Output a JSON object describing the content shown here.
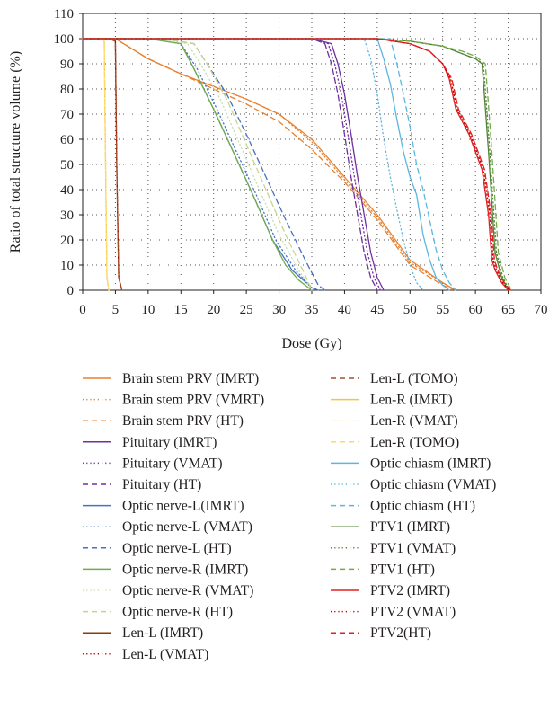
{
  "chart_data": {
    "type": "line",
    "title": "",
    "xlabel": "Dose (Gy)",
    "ylabel": "Ratio of total structure volume (%)",
    "xlim": [
      0,
      70
    ],
    "ylim": [
      0,
      110
    ],
    "x_ticks": [
      0,
      5,
      10,
      15,
      20,
      25,
      30,
      35,
      40,
      45,
      50,
      55,
      60,
      65,
      70
    ],
    "y_ticks": [
      0,
      10,
      20,
      30,
      40,
      50,
      60,
      70,
      80,
      90,
      100,
      110
    ],
    "grid": "dotted",
    "legend_position": "bottom",
    "series": [
      {
        "name": "Brain stem PRV (IMRT)",
        "color": "#e8812f",
        "dash": "solid",
        "x": [
          0,
          5,
          10,
          15,
          20,
          25,
          30,
          35,
          40,
          45,
          50,
          55,
          57
        ],
        "y": [
          100,
          100,
          92,
          86,
          81,
          76,
          70,
          60,
          45,
          30,
          12,
          3,
          0
        ]
      },
      {
        "name": "Brain stem PRV (VMRT)",
        "color": "#e8812f",
        "dash": "dot",
        "x": [
          0,
          5,
          10,
          15,
          20,
          25,
          30,
          35,
          40,
          45,
          50,
          55,
          57
        ],
        "y": [
          100,
          100,
          92,
          86,
          81,
          76,
          70,
          59,
          44,
          29,
          11,
          3,
          0
        ]
      },
      {
        "name": "Brain stem PRV (HT)",
        "color": "#e8812f",
        "dash": "dash",
        "x": [
          0,
          5,
          10,
          15,
          20,
          25,
          30,
          35,
          40,
          45,
          50,
          55,
          57
        ],
        "y": [
          100,
          100,
          92,
          86,
          80,
          74,
          67,
          56,
          43,
          28,
          10,
          2,
          0
        ]
      },
      {
        "name": "Pituitary (IMRT)",
        "color": "#7030a0",
        "dash": "solid",
        "x": [
          0,
          35,
          38,
          39,
          40,
          41,
          42,
          43,
          44,
          45,
          46
        ],
        "y": [
          100,
          100,
          98,
          90,
          78,
          62,
          45,
          30,
          15,
          5,
          0
        ]
      },
      {
        "name": "Pituitary (VMAT)",
        "color": "#7030a0",
        "dash": "dot",
        "x": [
          0,
          35,
          37.5,
          38.5,
          39.5,
          40.5,
          41.5,
          42.5,
          43.5,
          44.5,
          45.5
        ],
        "y": [
          100,
          100,
          98,
          90,
          78,
          62,
          45,
          30,
          15,
          5,
          0
        ]
      },
      {
        "name": "Pituitary (HT)",
        "color": "#7030a0",
        "dash": "dash",
        "x": [
          0,
          35,
          37,
          38,
          39,
          40,
          41,
          42,
          43,
          44,
          45
        ],
        "y": [
          100,
          100,
          98,
          90,
          78,
          62,
          45,
          30,
          15,
          5,
          0
        ]
      },
      {
        "name": "Optic nerve-L(IMRT)",
        "color": "#4472c4",
        "dash": "solid",
        "x": [
          0,
          10,
          15,
          17,
          20,
          23,
          26,
          29,
          32,
          35,
          36
        ],
        "y": [
          100,
          100,
          98,
          88,
          72,
          55,
          38,
          20,
          8,
          1,
          0
        ]
      },
      {
        "name": "Optic nerve-L (VMAT)",
        "color": "#4472c4",
        "dash": "dot",
        "x": [
          0,
          10,
          15,
          17.5,
          20.5,
          23.5,
          26.5,
          29.5,
          32.5,
          35,
          36
        ],
        "y": [
          100,
          100,
          98,
          88,
          72,
          55,
          38,
          20,
          8,
          1,
          0
        ]
      },
      {
        "name": "Optic nerve-L (HT)",
        "color": "#4472c4",
        "dash": "dash",
        "x": [
          0,
          12,
          17,
          19,
          22,
          25,
          28,
          31,
          34,
          36,
          37
        ],
        "y": [
          100,
          100,
          98,
          90,
          78,
          62,
          45,
          28,
          12,
          2,
          0
        ]
      },
      {
        "name": "Optic nerve-R (IMRT)",
        "color": "#70ad47",
        "dash": "solid",
        "x": [
          0,
          10,
          15,
          17,
          20,
          23,
          26,
          29,
          31,
          33,
          35
        ],
        "y": [
          100,
          100,
          98,
          88,
          72,
          55,
          38,
          20,
          10,
          4,
          0
        ]
      },
      {
        "name": "Optic nerve-R (VMAT)",
        "color": "#c5e0b4",
        "dash": "dot",
        "x": [
          0,
          11,
          16,
          18,
          21,
          24,
          27,
          30,
          33,
          35
        ],
        "y": [
          100,
          100,
          98,
          90,
          76,
          58,
          40,
          22,
          8,
          0
        ]
      },
      {
        "name": "Optic nerve-R (HT)",
        "color": "#c9d48a",
        "dash": "dash",
        "x": [
          0,
          12,
          17,
          19,
          22,
          25,
          28,
          31,
          34,
          35
        ],
        "y": [
          100,
          100,
          98,
          90,
          76,
          58,
          40,
          22,
          6,
          0
        ]
      },
      {
        "name": "Len-L (IMRT)",
        "color": "#843c0c",
        "dash": "solid",
        "x": [
          0,
          4,
          5,
          5.2,
          5.5,
          6
        ],
        "y": [
          100,
          100,
          99,
          50,
          5,
          0
        ]
      },
      {
        "name": "Len-L (VMAT)",
        "color": "#c00000",
        "dash": "dot",
        "x": [
          0,
          4,
          5,
          5.2,
          5.5,
          6
        ],
        "y": [
          100,
          100,
          99,
          50,
          5,
          0
        ]
      },
      {
        "name": "Len-L (TOMO)",
        "color": "#a0522d",
        "dash": "dash",
        "x": [
          0,
          4,
          5,
          5.2,
          5.5,
          6
        ],
        "y": [
          100,
          100,
          99,
          50,
          5,
          0
        ]
      },
      {
        "name": "Len-R (IMRT)",
        "color": "#f4c542",
        "dash": "solid",
        "x": [
          0,
          3,
          3.3,
          3.5,
          3.7,
          4
        ],
        "y": [
          100,
          100,
          99,
          50,
          5,
          0
        ]
      },
      {
        "name": "Len-R (VMAT)",
        "color": "#ffe699",
        "dash": "dot",
        "x": [
          0,
          3,
          3.3,
          3.5,
          3.7,
          4
        ],
        "y": [
          100,
          100,
          99,
          50,
          5,
          0
        ]
      },
      {
        "name": "Len-R (TOMO)",
        "color": "#ffd966",
        "dash": "dash",
        "x": [
          0,
          3,
          3.3,
          3.5,
          3.7,
          4
        ],
        "y": [
          100,
          100,
          99,
          50,
          5,
          0
        ]
      },
      {
        "name": "Optic chiasm (IMRT)",
        "color": "#5bb7e0",
        "dash": "solid",
        "x": [
          0,
          45,
          46,
          47,
          48,
          49,
          50,
          51,
          52,
          53,
          54,
          55,
          56
        ],
        "y": [
          100,
          100,
          92,
          82,
          68,
          55,
          45,
          38,
          22,
          12,
          5,
          2,
          0
        ]
      },
      {
        "name": "Optic chiasm (VMAT)",
        "color": "#5bb7e0",
        "dash": "dot",
        "x": [
          0,
          43,
          44,
          45,
          46,
          47,
          48,
          49,
          50,
          51,
          52
        ],
        "y": [
          100,
          100,
          92,
          78,
          60,
          45,
          32,
          20,
          10,
          3,
          0
        ]
      },
      {
        "name": "Optic chiasm (HT)",
        "color": "#5bb7e0",
        "dash": "dash",
        "x": [
          0,
          47,
          48,
          49,
          50,
          51,
          52,
          53,
          54,
          55,
          56,
          57
        ],
        "y": [
          100,
          100,
          90,
          78,
          65,
          50,
          40,
          28,
          16,
          8,
          3,
          0
        ]
      },
      {
        "name": "PTV1 (IMRT)",
        "color": "#548235",
        "dash": "solid",
        "x": [
          0,
          45,
          50,
          55,
          58,
          60,
          61,
          61.3,
          62,
          63,
          64,
          65
        ],
        "y": [
          100,
          100,
          99,
          97,
          94,
          92,
          90,
          80,
          55,
          15,
          5,
          0
        ]
      },
      {
        "name": "PTV1 (VMAT)",
        "color": "#548235",
        "dash": "dot",
        "x": [
          0,
          45,
          50,
          55,
          58,
          60,
          61.2,
          61.5,
          62.2,
          63.2,
          64.2,
          65.2
        ],
        "y": [
          100,
          100,
          99,
          97,
          94,
          92,
          90,
          80,
          55,
          15,
          5,
          0
        ]
      },
      {
        "name": "PTV1 (HT)",
        "color": "#70ad47",
        "dash": "dash",
        "x": [
          0,
          45,
          50,
          55,
          58,
          60,
          61.5,
          61.8,
          62.5,
          63.5,
          64.5,
          65.5
        ],
        "y": [
          100,
          100,
          99,
          97,
          95,
          93,
          90,
          80,
          55,
          15,
          5,
          0
        ]
      },
      {
        "name": "PTV2 (IMRT)",
        "color": "#e02020",
        "dash": "solid",
        "x": [
          0,
          45,
          50,
          53,
          55,
          56,
          57,
          59,
          61,
          62,
          62.5,
          63,
          64,
          65
        ],
        "y": [
          100,
          100,
          98,
          95,
          90,
          84,
          72,
          62,
          48,
          30,
          12,
          8,
          3,
          0
        ]
      },
      {
        "name": "PTV2 (VMAT)",
        "color": "#c00000",
        "dash": "dot",
        "x": [
          0,
          45,
          50,
          53,
          55,
          56.2,
          57.2,
          59.2,
          61.2,
          62.2,
          62.7,
          63.2,
          64.2,
          65.2
        ],
        "y": [
          100,
          100,
          98,
          95,
          90,
          84,
          72,
          62,
          48,
          30,
          12,
          8,
          3,
          0
        ]
      },
      {
        "name": "PTV2(HT)",
        "color": "#e02020",
        "dash": "dash",
        "x": [
          0,
          45,
          50,
          53,
          55,
          56.4,
          57.4,
          59.4,
          61.4,
          62.4,
          62.9,
          63.4,
          64.4,
          65.4
        ],
        "y": [
          100,
          100,
          98,
          95,
          90,
          84,
          72,
          62,
          48,
          30,
          12,
          8,
          3,
          0
        ]
      }
    ]
  }
}
